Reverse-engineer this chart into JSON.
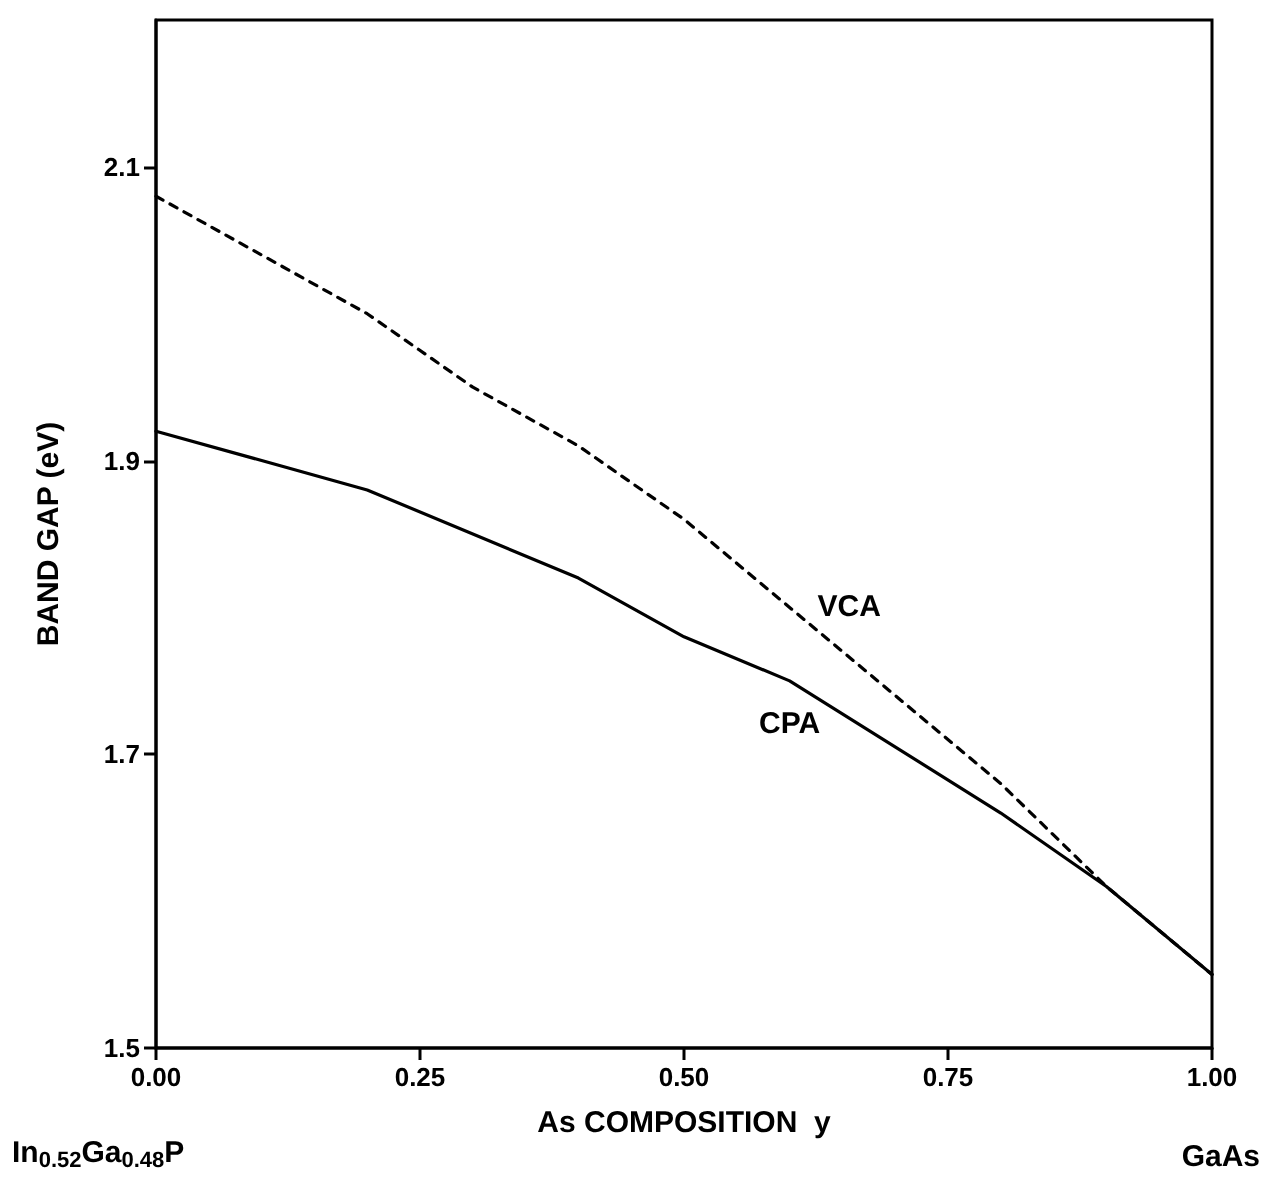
{
  "chart_data": {
    "type": "line",
    "xlabel": "As COMPOSITION  y",
    "ylabel": "BAND GAP (eV)",
    "annotations": [
      "In$_{0.52}$Ga$_{0.48}$P",
      "GaAs"
    ],
    "series": [
      {
        "name": "VCA",
        "color": "#000000",
        "line_style": "dashed",
        "x": [
          0,
          0.2,
          0.3,
          0.4,
          0.5,
          0.6,
          0.7,
          0.8,
          0.9,
          1.0
        ],
        "values": [
          2.08,
          2.0,
          1.95,
          1.91,
          1.86,
          1.8,
          1.74,
          1.68,
          1.61,
          1.55
        ]
      },
      {
        "name": "CPA",
        "color": "#000000",
        "line_style": "solid",
        "x": [
          0,
          0.2,
          0.4,
          0.5,
          0.6,
          0.8,
          0.9,
          1.0
        ],
        "values": [
          1.92,
          1.88,
          1.82,
          1.78,
          1.75,
          1.66,
          1.61,
          1.55
        ]
      }
    ],
    "xlim": [
      0,
      1
    ],
    "xticks": [
      {
        "value": 0,
        "label": "0.00"
      },
      {
        "value": 0.25,
        "label": "0.25"
      },
      {
        "value": 0.5,
        "label": "0.50"
      },
      {
        "value": 0.75,
        "label": "0.75"
      },
      {
        "value": 1,
        "label": "1.00"
      }
    ],
    "ylim": [
      1.5,
      2.2
    ],
    "yticks": [
      1.5,
      1.7,
      1.9,
      2.1
    ],
    "grid": false,
    "legend": false,
    "marker": "none"
  }
}
